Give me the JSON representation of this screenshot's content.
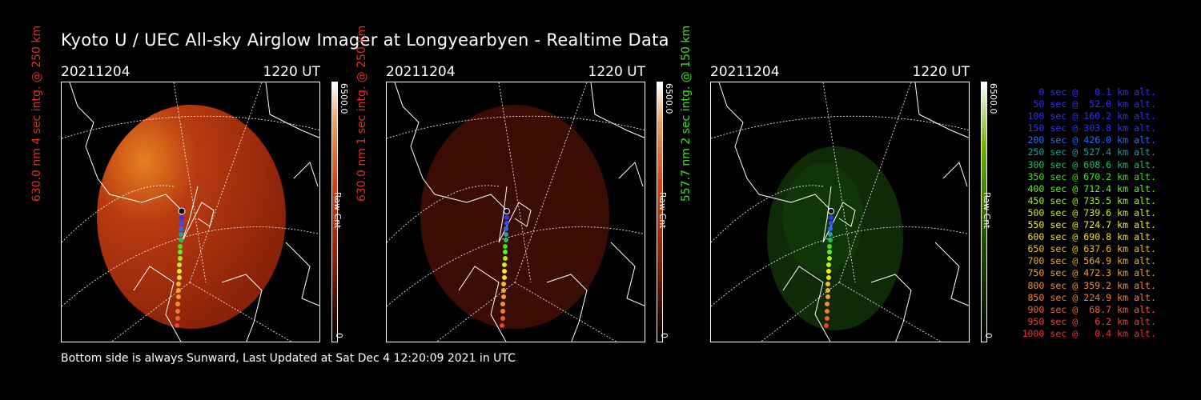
{
  "title": "Kyoto U / UEC All-sky Airglow Imager at Longyearbyen - Realtime Data",
  "footer": "Bottom side is always Sunward, Last Updated at Sat Dec  4 12:20:09 2021 in UTC",
  "panels": [
    {
      "date": "20211204",
      "time": "1220 UT",
      "ylabel": "630.0 nm 4 sec intg. @ 250 km",
      "label_color": "#e03020",
      "colorbar_max": "6500.0",
      "colorbar_min": "0",
      "colorbar_label": "Raw Cnt",
      "colorbar_color": "#c02000"
    },
    {
      "date": "20211204",
      "time": "1220 UT",
      "ylabel": "630.0 nm 1 sec intg. @ 250 km",
      "label_color": "#e03020",
      "colorbar_max": "6500.0",
      "colorbar_min": "0",
      "colorbar_label": "Raw Cnt",
      "colorbar_color": "#c02000"
    },
    {
      "date": "20211204",
      "time": "1220 UT",
      "ylabel": "557.7 nm 2 sec intg. @ 150 km",
      "label_color": "#40e020",
      "colorbar_max": "6500.0",
      "colorbar_min": "0",
      "colorbar_label": "Raw Cnt",
      "colorbar_color": "#40a000"
    }
  ],
  "legend": [
    {
      "text": "0 sec @   0.1 km alt.",
      "color": "#3030ff"
    },
    {
      "text": "50 sec @  52.0 km alt.",
      "color": "#3030ff"
    },
    {
      "text": "100 sec @ 160.2 km alt.",
      "color": "#3030ff"
    },
    {
      "text": "150 sec @ 303.8 km alt.",
      "color": "#3030ff"
    },
    {
      "text": "200 sec @ 426.0 km alt.",
      "color": "#2a6aff"
    },
    {
      "text": "250 sec @ 527.4 km alt.",
      "color": "#20a0a0"
    },
    {
      "text": "300 sec @ 608.6 km alt.",
      "color": "#20c060"
    },
    {
      "text": "350 sec @ 670.2 km alt.",
      "color": "#40e020"
    },
    {
      "text": "400 sec @ 712.4 km alt.",
      "color": "#60f020"
    },
    {
      "text": "450 sec @ 735.5 km alt.",
      "color": "#a0f020"
    },
    {
      "text": "500 sec @ 739.6 km alt.",
      "color": "#c0f020"
    },
    {
      "text": "550 sec @ 724.7 km alt.",
      "color": "#f0f020"
    },
    {
      "text": "600 sec @ 690.8 km alt.",
      "color": "#f0e020"
    },
    {
      "text": "650 sec @ 637.6 km alt.",
      "color": "#f0c020"
    },
    {
      "text": "700 sec @ 564.9 km alt.",
      "color": "#f0b020"
    },
    {
      "text": "750 sec @ 472.3 km alt.",
      "color": "#f0a030"
    },
    {
      "text": "800 sec @ 359.2 km alt.",
      "color": "#f09030"
    },
    {
      "text": "850 sec @ 224.9 km alt.",
      "color": "#f08030"
    },
    {
      "text": "900 sec @  68.7 km alt.",
      "color": "#f06030"
    },
    {
      "text": "950 sec @   6.2 km alt.",
      "color": "#f04030"
    },
    {
      "text": "1000 sec @   0.4 km alt.",
      "color": "#f03030"
    }
  ]
}
